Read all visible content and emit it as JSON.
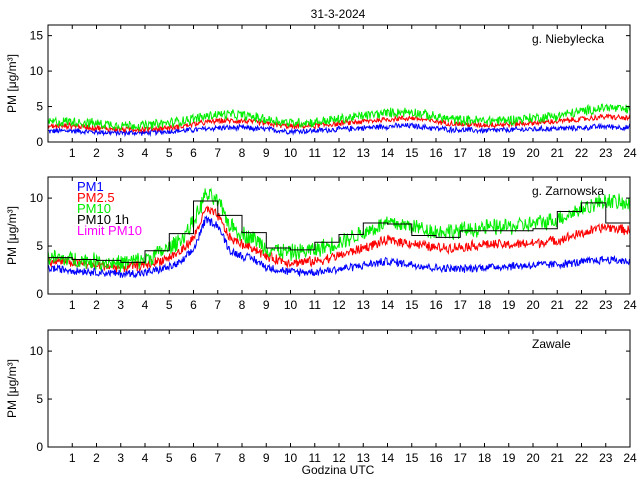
{
  "chart_data": {
    "type": "line",
    "title": "31-3-2024",
    "xlabel": "Godzina UTC",
    "x_ticks": [
      1,
      2,
      3,
      4,
      5,
      6,
      7,
      8,
      9,
      10,
      11,
      12,
      13,
      14,
      15,
      16,
      17,
      18,
      19,
      20,
      21,
      22,
      23,
      24
    ],
    "xlim": [
      0,
      24
    ],
    "legend": [
      {
        "name": "PM1",
        "color": "#0000ff"
      },
      {
        "name": "PM2.5",
        "color": "#ff0000"
      },
      {
        "name": "PM10",
        "color": "#00ee00"
      },
      {
        "name": "PM10 1h",
        "color": "#000000"
      },
      {
        "name": "Limit PM10",
        "color": "#ff00ff"
      }
    ],
    "panels": [
      {
        "station": "g. Niebylecka",
        "ylabel": "PM [μg/m³]",
        "ylim": [
          0,
          16.5
        ],
        "y_ticks": [
          0,
          5,
          10,
          15
        ],
        "has_data": true,
        "series": [
          {
            "name": "PM1",
            "color": "#0000ff",
            "noise": 0.45,
            "hours": [
              0,
              1,
              2,
              3,
              4,
              5,
              6,
              7,
              8,
              9,
              10,
              11,
              12,
              13,
              14,
              15,
              16,
              17,
              18,
              19,
              20,
              21,
              22,
              23,
              24
            ],
            "values": [
              1.5,
              1.6,
              1.4,
              1.3,
              1.3,
              1.5,
              1.7,
              2.0,
              2.0,
              1.8,
              1.5,
              1.6,
              1.8,
              2.0,
              2.2,
              2.3,
              1.9,
              1.7,
              1.6,
              1.7,
              1.8,
              1.9,
              2.0,
              2.2,
              2.0
            ]
          },
          {
            "name": "PM2.5",
            "color": "#ff0000",
            "noise": 0.45,
            "hours": [
              0,
              1,
              2,
              3,
              4,
              5,
              6,
              7,
              8,
              9,
              10,
              11,
              12,
              13,
              14,
              15,
              16,
              17,
              18,
              19,
              20,
              21,
              22,
              23,
              24
            ],
            "values": [
              2.2,
              2.3,
              2.0,
              1.8,
              1.8,
              2.0,
              2.5,
              3.0,
              3.0,
              2.6,
              2.2,
              2.3,
              2.6,
              2.9,
              3.2,
              3.4,
              2.9,
              2.5,
              2.4,
              2.5,
              2.7,
              2.9,
              3.2,
              3.6,
              3.3
            ]
          },
          {
            "name": "PM10",
            "color": "#00ee00",
            "noise": 0.8,
            "hours": [
              0,
              1,
              2,
              3,
              4,
              5,
              6,
              7,
              8,
              9,
              10,
              11,
              12,
              13,
              14,
              15,
              16,
              17,
              18,
              19,
              20,
              21,
              22,
              23,
              24
            ],
            "values": [
              2.8,
              2.9,
              2.6,
              2.4,
              2.3,
              2.7,
              3.3,
              3.9,
              3.8,
              3.2,
              2.7,
              2.8,
              3.2,
              3.7,
              4.1,
              4.3,
              3.5,
              3.1,
              3.0,
              3.1,
              3.4,
              3.7,
              4.3,
              4.9,
              4.5
            ]
          }
        ]
      },
      {
        "station": "g. Zarnowska",
        "ylabel": "PM [μg/m³]",
        "ylim": [
          0,
          12.2
        ],
        "y_ticks": [
          0,
          5,
          10
        ],
        "has_data": true,
        "series": [
          {
            "name": "PM1",
            "color": "#0000ff",
            "noise": 0.5,
            "hours": [
              0,
              1,
              2,
              3,
              4,
              5,
              5.5,
              6,
              6.5,
              7,
              7.5,
              8,
              8.5,
              9,
              10,
              11,
              12,
              13,
              14,
              15,
              16,
              17,
              18,
              19,
              20,
              21,
              22,
              23,
              24
            ],
            "values": [
              2.7,
              2.5,
              2.3,
              2.1,
              2.2,
              2.8,
              3.3,
              4.6,
              7.8,
              7.2,
              4.5,
              4.0,
              3.6,
              2.8,
              2.3,
              2.3,
              2.6,
              3.0,
              3.4,
              3.1,
              2.7,
              2.6,
              2.8,
              2.9,
              3.0,
              3.1,
              3.3,
              3.6,
              3.4
            ]
          },
          {
            "name": "PM2.5",
            "color": "#ff0000",
            "noise": 0.6,
            "hours": [
              0,
              1,
              2,
              3,
              4,
              5,
              5.5,
              6,
              6.5,
              7,
              7.5,
              8,
              8.5,
              9,
              10,
              11,
              12,
              13,
              14,
              15,
              16,
              17,
              18,
              19,
              20,
              21,
              22,
              23,
              24
            ],
            "values": [
              3.5,
              3.3,
              3.0,
              2.8,
              3.0,
              3.8,
              4.5,
              5.8,
              8.8,
              8.2,
              5.8,
              5.2,
              4.8,
              3.9,
              3.3,
              3.4,
              4.0,
              4.8,
              5.6,
              5.3,
              4.8,
              4.9,
              5.2,
              5.1,
              5.3,
              5.6,
              6.3,
              7.0,
              6.6
            ]
          },
          {
            "name": "PM10",
            "color": "#00ee00",
            "noise": 1.0,
            "hours": [
              0,
              1,
              2,
              3,
              4,
              5,
              5.5,
              6,
              6.5,
              7,
              7.5,
              8,
              8.5,
              9,
              10,
              11,
              12,
              13,
              14,
              15,
              16,
              17,
              18,
              19,
              20,
              21,
              22,
              23,
              24
            ],
            "values": [
              3.8,
              3.6,
              3.4,
              3.2,
              3.6,
              4.8,
              5.8,
              7.4,
              10.4,
              9.6,
              7.2,
              6.3,
              5.8,
              4.8,
              4.3,
              4.6,
              5.4,
              6.4,
              7.4,
              7.1,
              6.5,
              6.6,
              6.9,
              7.0,
              7.3,
              7.8,
              8.9,
              9.8,
              9.2
            ]
          }
        ],
        "hourly": {
          "name": "PM10 1h",
          "color": "#000000",
          "values": [
            3.8,
            3.6,
            3.5,
            3.3,
            4.5,
            6.3,
            9.7,
            8.2,
            6.4,
            4.8,
            4.6,
            5.4,
            6.2,
            7.4,
            7.3,
            6.1,
            5.9,
            6.6,
            6.6,
            6.6,
            6.8,
            8.6,
            9.5,
            7.4
          ]
        }
      },
      {
        "station": "Zawale",
        "ylabel": "PM [μg/m³]",
        "ylim": [
          0,
          12.2
        ],
        "y_ticks": [
          0,
          5,
          10
        ],
        "has_data": false,
        "series": []
      }
    ]
  }
}
